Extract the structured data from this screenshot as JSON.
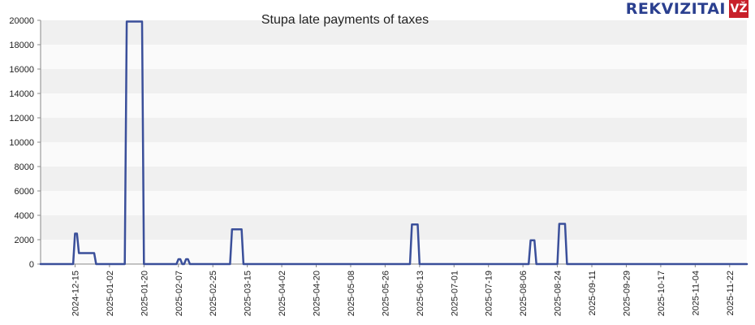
{
  "logo": {
    "brand": "REKVIZITAI",
    "badge": "VŽ"
  },
  "chart_data": {
    "type": "line",
    "title": "Stupa late payments of taxes",
    "xlabel": "",
    "ylabel": "",
    "ylim": [
      0,
      20000
    ],
    "yticks": [
      0,
      2000,
      4000,
      6000,
      8000,
      10000,
      12000,
      14000,
      16000,
      18000,
      20000
    ],
    "xlim": [
      "2024-11-27",
      "2025-12-01"
    ],
    "xticks": [
      "2024-12-15",
      "2025-01-02",
      "2025-01-20",
      "2025-02-07",
      "2025-02-25",
      "2025-03-15",
      "2025-04-02",
      "2025-04-20",
      "2025-05-08",
      "2025-05-26",
      "2025-06-13",
      "2025-07-01",
      "2025-07-19",
      "2025-08-06",
      "2025-08-24",
      "2025-09-11",
      "2025-09-29",
      "2025-10-17",
      "2025-11-04",
      "2025-11-22"
    ],
    "grid": "horizontal bands",
    "line_color": "#3a4f9a",
    "series": [
      {
        "x": [
          "2024-11-27",
          "2024-12-14",
          "2024-12-15",
          "2024-12-16",
          "2024-12-17",
          "2024-12-25",
          "2024-12-26",
          "2025-01-10",
          "2025-01-11",
          "2025-01-19",
          "2025-01-20",
          "2025-02-06",
          "2025-02-07",
          "2025-02-08",
          "2025-02-09",
          "2025-02-10",
          "2025-02-11",
          "2025-02-12",
          "2025-02-13",
          "2025-02-14",
          "2025-02-15",
          "2025-02-16",
          "2025-02-17",
          "2025-03-06",
          "2025-03-07",
          "2025-03-12",
          "2025-03-13",
          "2025-06-08",
          "2025-06-09",
          "2025-06-12",
          "2025-06-13",
          "2025-08-09",
          "2025-08-10",
          "2025-08-12",
          "2025-08-13",
          "2025-08-24",
          "2025-08-25",
          "2025-08-28",
          "2025-08-29",
          "2025-12-01"
        ],
        "y": [
          0,
          0,
          2500,
          2500,
          900,
          900,
          0,
          0,
          19900,
          19900,
          0,
          0,
          400,
          400,
          0,
          0,
          400,
          400,
          0,
          0,
          0,
          0,
          0,
          0,
          2850,
          2850,
          0,
          0,
          3250,
          3250,
          0,
          0,
          1950,
          1950,
          0,
          0,
          3300,
          3300,
          0,
          0
        ]
      }
    ]
  }
}
